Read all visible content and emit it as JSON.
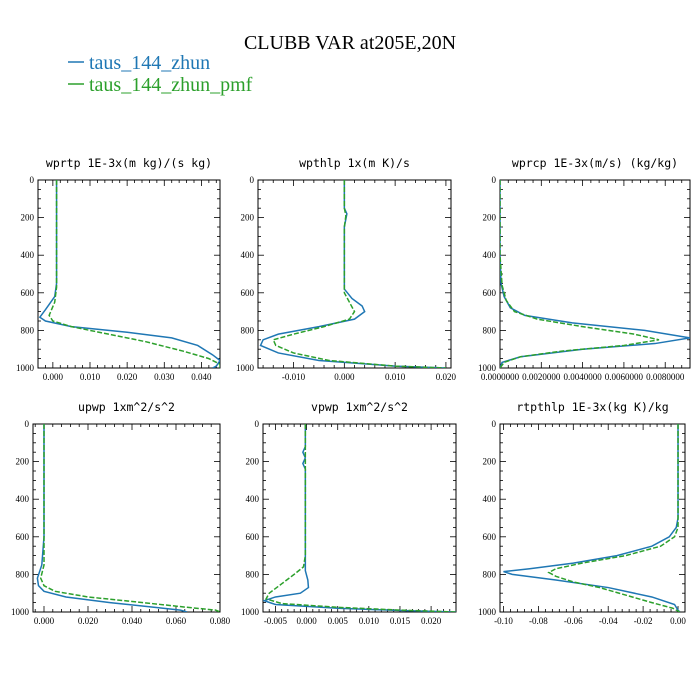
{
  "title": "CLUBB VAR at205E,20N",
  "legend": [
    {
      "label": "taus_144_zhun",
      "color": "#1f77b4",
      "dash": "solid"
    },
    {
      "label": "taus_144_zhun_pmf",
      "color": "#2ca02c",
      "dash": "dashed"
    }
  ],
  "chart_data": [
    {
      "type": "line",
      "title": "wprtp  1E-3x(m kg)/(s kg)",
      "xlim": [
        -0.004,
        0.045
      ],
      "ylim": [
        1000,
        0
      ],
      "y_reversed": true,
      "xticks": [
        0.0,
        0.01,
        0.02,
        0.03,
        0.04
      ],
      "xtick_labels": [
        "0.000",
        "0.010",
        "0.020",
        "0.030",
        "0.040"
      ],
      "yticks": [
        0,
        200,
        400,
        600,
        800,
        1000
      ],
      "series": [
        {
          "name": "taus_144_zhun",
          "points": [
            [
              0.001,
              0
            ],
            [
              0.001,
              200
            ],
            [
              0.001,
              400
            ],
            [
              0.001,
              550
            ],
            [
              0.0005,
              620
            ],
            [
              -0.002,
              690
            ],
            [
              -0.0035,
              730
            ],
            [
              -0.002,
              750
            ],
            [
              0.005,
              780
            ],
            [
              0.02,
              810
            ],
            [
              0.032,
              840
            ],
            [
              0.039,
              880
            ],
            [
              0.043,
              930
            ],
            [
              0.045,
              960
            ],
            [
              0.044,
              990
            ],
            [
              0.043,
              1000
            ]
          ]
        },
        {
          "name": "taus_144_zhun_pmf",
          "points": [
            [
              0.001,
              0
            ],
            [
              0.001,
              200
            ],
            [
              0.001,
              400
            ],
            [
              0.001,
              570
            ],
            [
              0.0005,
              650
            ],
            [
              -0.001,
              720
            ],
            [
              0.0,
              750
            ],
            [
              0.005,
              780
            ],
            [
              0.015,
              820
            ],
            [
              0.025,
              860
            ],
            [
              0.035,
              910
            ],
            [
              0.042,
              950
            ],
            [
              0.045,
              980
            ],
            [
              0.045,
              1000
            ]
          ]
        }
      ]
    },
    {
      "type": "line",
      "title": "wpthlp  1x(m K)/s",
      "xlim": [
        -0.017,
        0.021
      ],
      "ylim": [
        1000,
        0
      ],
      "y_reversed": true,
      "xticks": [
        -0.01,
        0.0,
        0.01,
        0.02
      ],
      "xtick_labels": [
        "-0.010",
        "0.000",
        "0.010",
        "0.020"
      ],
      "yticks": [
        0,
        200,
        400,
        600,
        800,
        1000
      ],
      "series": [
        {
          "name": "taus_144_zhun",
          "points": [
            [
              0.0,
              0
            ],
            [
              0.0,
              150
            ],
            [
              0.0005,
              180
            ],
            [
              0.0,
              250
            ],
            [
              0.0,
              500
            ],
            [
              0.0,
              580
            ],
            [
              0.0015,
              630
            ],
            [
              0.0035,
              670
            ],
            [
              0.004,
              700
            ],
            [
              0.002,
              740
            ],
            [
              -0.005,
              780
            ],
            [
              -0.013,
              820
            ],
            [
              -0.016,
              850
            ],
            [
              -0.0165,
              880
            ],
            [
              -0.013,
              920
            ],
            [
              -0.005,
              960
            ],
            [
              0.01,
              990
            ],
            [
              0.02,
              1000
            ]
          ]
        },
        {
          "name": "taus_144_zhun_pmf",
          "points": [
            [
              0.0,
              0
            ],
            [
              0.0,
              150
            ],
            [
              0.0003,
              190
            ],
            [
              0.0,
              250
            ],
            [
              0.0,
              500
            ],
            [
              0.0,
              600
            ],
            [
              0.001,
              650
            ],
            [
              0.002,
              700
            ],
            [
              0.001,
              740
            ],
            [
              -0.004,
              780
            ],
            [
              -0.01,
              820
            ],
            [
              -0.014,
              850
            ],
            [
              -0.0135,
              880
            ],
            [
              -0.01,
              920
            ],
            [
              -0.003,
              960
            ],
            [
              0.01,
              990
            ],
            [
              0.02,
              1000
            ]
          ]
        }
      ]
    },
    {
      "type": "line",
      "title": "wprcp  1E-3x(m/s) (kg/kg)",
      "xlim": [
        0.0,
        0.0092
      ],
      "ylim": [
        1000,
        0
      ],
      "y_reversed": true,
      "xticks": [
        0.0,
        0.002,
        0.004,
        0.006,
        0.008
      ],
      "xtick_labels": [
        "0.0000000",
        "0.0020000",
        "0.0040000",
        "0.0060000",
        "0.0080000"
      ],
      "yticks": [
        0,
        200,
        400,
        600,
        800,
        1000
      ],
      "series": [
        {
          "name": "taus_144_zhun",
          "points": [
            [
              0.0,
              0
            ],
            [
              0.0,
              200
            ],
            [
              0.0,
              400
            ],
            [
              5e-05,
              550
            ],
            [
              0.0002,
              620
            ],
            [
              0.0005,
              680
            ],
            [
              0.0012,
              720
            ],
            [
              0.0035,
              760
            ],
            [
              0.007,
              800
            ],
            [
              0.0092,
              840
            ],
            [
              0.0075,
              870
            ],
            [
              0.004,
              900
            ],
            [
              0.001,
              940
            ],
            [
              0.0001,
              970
            ],
            [
              0.0,
              1000
            ]
          ]
        },
        {
          "name": "taus_144_zhun_pmf",
          "points": [
            [
              0.0,
              0
            ],
            [
              0.0,
              200
            ],
            [
              0.0,
              400
            ],
            [
              0.0001,
              560
            ],
            [
              0.0003,
              640
            ],
            [
              0.0007,
              700
            ],
            [
              0.0018,
              740
            ],
            [
              0.004,
              780
            ],
            [
              0.0065,
              820
            ],
            [
              0.0077,
              850
            ],
            [
              0.006,
              880
            ],
            [
              0.003,
              910
            ],
            [
              0.001,
              940
            ],
            [
              0.0002,
              970
            ],
            [
              0.0,
              1000
            ]
          ]
        }
      ]
    },
    {
      "type": "line",
      "title": "upwp  1xm^2/s^2",
      "xlim": [
        -0.005,
        0.08
      ],
      "ylim": [
        1000,
        0
      ],
      "y_reversed": true,
      "xticks": [
        0.0,
        0.02,
        0.04,
        0.06,
        0.08
      ],
      "xtick_labels": [
        "0.000",
        "0.020",
        "0.040",
        "0.060",
        "0.080"
      ],
      "yticks": [
        0,
        200,
        400,
        600,
        800,
        1000
      ],
      "series": [
        {
          "name": "taus_144_zhun",
          "points": [
            [
              0.0,
              0
            ],
            [
              0.0,
              200
            ],
            [
              0.0,
              400
            ],
            [
              0.0,
              600
            ],
            [
              -0.001,
              750
            ],
            [
              -0.003,
              820
            ],
            [
              -0.0025,
              860
            ],
            [
              0.0,
              890
            ],
            [
              0.01,
              920
            ],
            [
              0.03,
              950
            ],
            [
              0.05,
              975
            ],
            [
              0.062,
              990
            ],
            [
              0.065,
              1000
            ]
          ]
        },
        {
          "name": "taus_144_zhun_pmf",
          "points": [
            [
              0.0,
              0
            ],
            [
              0.0,
              200
            ],
            [
              0.0,
              400
            ],
            [
              0.0,
              600
            ],
            [
              0.0,
              750
            ],
            [
              -0.0015,
              820
            ],
            [
              0.0,
              860
            ],
            [
              0.005,
              890
            ],
            [
              0.02,
              920
            ],
            [
              0.045,
              950
            ],
            [
              0.065,
              975
            ],
            [
              0.078,
              990
            ],
            [
              0.08,
              1000
            ]
          ]
        }
      ]
    },
    {
      "type": "line",
      "title": "vpwp  1xm^2/s^2",
      "xlim": [
        -0.007,
        0.024
      ],
      "ylim": [
        1000,
        0
      ],
      "y_reversed": true,
      "xticks": [
        -0.005,
        0.0,
        0.005,
        0.01,
        0.015,
        0.02
      ],
      "xtick_labels": [
        "-0.005",
        "0.000",
        "0.005",
        "0.010",
        "0.015",
        "0.020"
      ],
      "yticks": [
        0,
        200,
        400,
        600,
        800,
        1000
      ],
      "series": [
        {
          "name": "taus_144_zhun",
          "points": [
            [
              -0.0002,
              0
            ],
            [
              -0.0002,
              120
            ],
            [
              -0.0006,
              150
            ],
            [
              -0.0002,
              180
            ],
            [
              -0.0006,
              210
            ],
            [
              -0.0002,
              240
            ],
            [
              -0.0002,
              500
            ],
            [
              -0.0002,
              780
            ],
            [
              0.0002,
              830
            ],
            [
              0.0003,
              870
            ],
            [
              -0.001,
              900
            ],
            [
              -0.005,
              920
            ],
            [
              -0.0068,
              940
            ],
            [
              -0.005,
              960
            ],
            [
              0.005,
              980
            ],
            [
              0.015,
              992
            ],
            [
              0.024,
              1000
            ]
          ]
        },
        {
          "name": "taus_144_zhun_pmf",
          "points": [
            [
              -0.0002,
              0
            ],
            [
              -0.0002,
              150
            ],
            [
              -0.0002,
              250
            ],
            [
              -0.0002,
              500
            ],
            [
              -0.0002,
              700
            ],
            [
              -0.0005,
              760
            ],
            [
              -0.002,
              800
            ],
            [
              -0.004,
              850
            ],
            [
              -0.006,
              900
            ],
            [
              -0.0065,
              930
            ],
            [
              -0.004,
              955
            ],
            [
              0.005,
              975
            ],
            [
              0.015,
              990
            ],
            [
              0.024,
              1000
            ]
          ]
        }
      ]
    },
    {
      "type": "line",
      "title": "rtpthlp  1E-3x(kg K)/kg",
      "xlim": [
        -0.102,
        0.004
      ],
      "ylim": [
        1000,
        0
      ],
      "y_reversed": true,
      "xticks": [
        -0.1,
        -0.08,
        -0.06,
        -0.04,
        -0.02,
        0.0
      ],
      "xtick_labels": [
        "-0.10",
        "-0.08",
        "-0.06",
        "-0.04",
        "-0.02",
        "0.00"
      ],
      "yticks": [
        0,
        200,
        400,
        600,
        800,
        1000
      ],
      "series": [
        {
          "name": "taus_144_zhun",
          "points": [
            [
              0.0,
              0
            ],
            [
              0.0,
              200
            ],
            [
              0.0,
              400
            ],
            [
              0.0,
              500
            ],
            [
              -0.001,
              550
            ],
            [
              -0.005,
              600
            ],
            [
              -0.015,
              650
            ],
            [
              -0.035,
              700
            ],
            [
              -0.06,
              740
            ],
            [
              -0.085,
              770
            ],
            [
              -0.1,
              785
            ],
            [
              -0.095,
              800
            ],
            [
              -0.07,
              830
            ],
            [
              -0.04,
              870
            ],
            [
              -0.015,
              920
            ],
            [
              -0.002,
              960
            ],
            [
              0.0,
              990
            ],
            [
              0.001,
              1000
            ]
          ]
        },
        {
          "name": "taus_144_zhun_pmf",
          "points": [
            [
              0.0,
              0
            ],
            [
              0.0,
              200
            ],
            [
              0.0,
              400
            ],
            [
              0.0,
              550
            ],
            [
              -0.002,
              600
            ],
            [
              -0.01,
              650
            ],
            [
              -0.03,
              700
            ],
            [
              -0.055,
              740
            ],
            [
              -0.07,
              770
            ],
            [
              -0.074,
              790
            ],
            [
              -0.07,
              810
            ],
            [
              -0.06,
              840
            ],
            [
              -0.045,
              870
            ],
            [
              -0.03,
              910
            ],
            [
              -0.015,
              950
            ],
            [
              -0.003,
              980
            ],
            [
              0.0,
              995
            ],
            [
              0.001,
              1000
            ]
          ]
        }
      ]
    }
  ]
}
